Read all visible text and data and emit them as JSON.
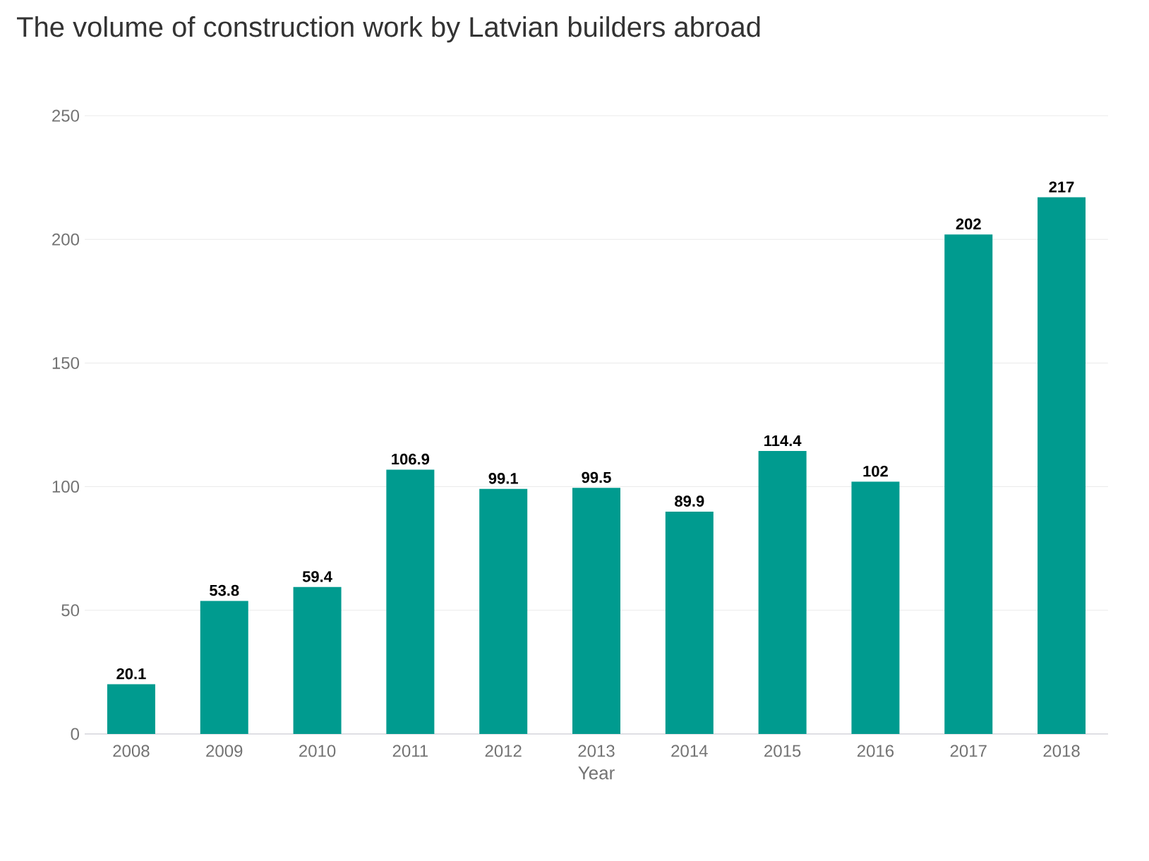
{
  "chart_data": {
    "type": "bar",
    "title": "The volume of construction work by Latvian builders abroad",
    "xlabel": "Year",
    "categories": [
      "2008",
      "2009",
      "2010",
      "2011",
      "2012",
      "2013",
      "2014",
      "2015",
      "2016",
      "2017",
      "2018"
    ],
    "values": [
      20.1,
      53.8,
      59.4,
      106.9,
      99.1,
      99.5,
      89.9,
      114.4,
      102,
      202,
      217
    ],
    "color": "#009b8f",
    "ylim": [
      0,
      250
    ],
    "yticks": [
      0,
      50,
      100,
      150,
      200,
      250
    ],
    "grid": "y",
    "data_labels": true
  }
}
